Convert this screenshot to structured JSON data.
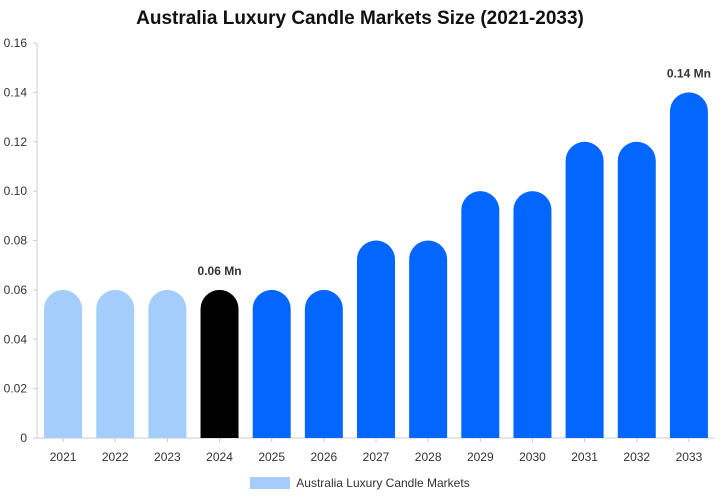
{
  "chart_data": {
    "type": "bar",
    "title": "Australia Luxury Candle Markets Size (2021-2033)",
    "categories": [
      "2021",
      "2022",
      "2023",
      "2024",
      "2025",
      "2026",
      "2027",
      "2028",
      "2029",
      "2030",
      "2031",
      "2032",
      "2033"
    ],
    "series": [
      {
        "name": "Australia Luxury Candle Markets",
        "values": [
          0.06,
          0.06,
          0.06,
          0.06,
          0.06,
          0.06,
          0.08,
          0.08,
          0.1,
          0.1,
          0.12,
          0.12,
          0.14
        ]
      }
    ],
    "bar_colors": [
      "#a5cdfb",
      "#a5cdfb",
      "#a5cdfb",
      "#000000",
      "#0366ff",
      "#0366ff",
      "#0366ff",
      "#0366ff",
      "#0366ff",
      "#0366ff",
      "#0366ff",
      "#0366ff",
      "#0366ff"
    ],
    "data_labels": [
      {
        "category": "2024",
        "text": "0.06 Mn"
      },
      {
        "category": "2033",
        "text": "0.14 Mn"
      }
    ],
    "ylim": [
      0,
      0.16
    ],
    "yticks": [
      "0",
      "0.02",
      "0.04",
      "0.06",
      "0.08",
      "0.10",
      "0.12",
      "0.14",
      "0.16"
    ],
    "grid": false,
    "legend_position": "bottom",
    "legend_color": "#a5cdfb"
  }
}
